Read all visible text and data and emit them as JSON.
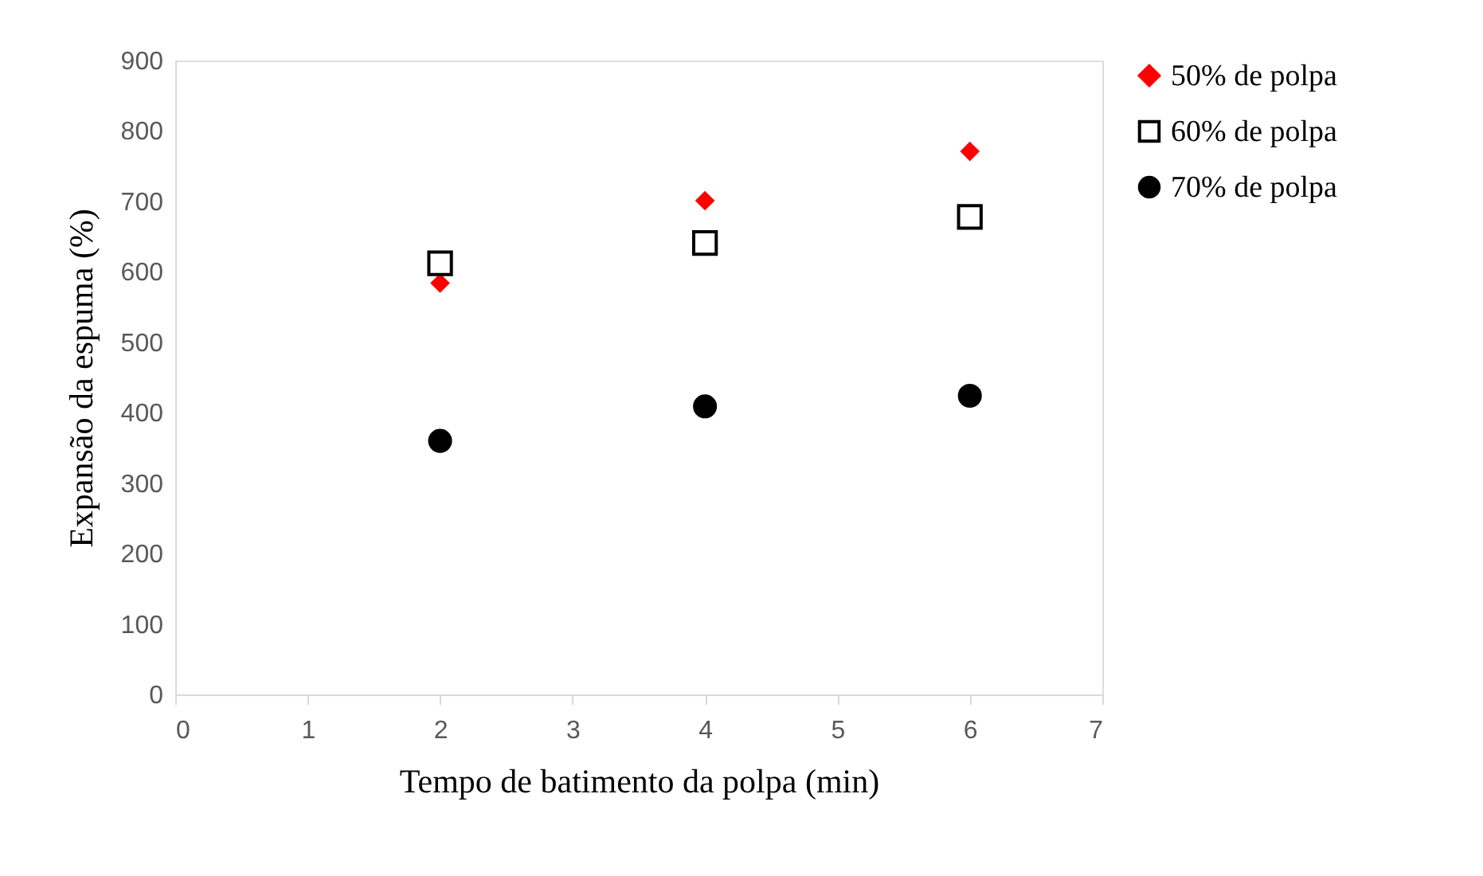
{
  "chart_data": {
    "type": "scatter",
    "xlabel": "Tempo de batimento da polpa (min)",
    "ylabel": "Expansão da espuma (%)",
    "xlim": [
      0,
      7
    ],
    "xticks": [
      0,
      1,
      2,
      3,
      4,
      5,
      6,
      7
    ],
    "ylim": [
      0,
      900
    ],
    "yticks": [
      0,
      100,
      200,
      300,
      400,
      500,
      600,
      700,
      800,
      900
    ],
    "grid": false,
    "legend": "right",
    "series": [
      {
        "name": "50% de polpa",
        "color": "#ff0000",
        "marker": "diamond",
        "x": [
          2,
          4,
          6
        ],
        "values": [
          584,
          701,
          771
        ]
      },
      {
        "name": "60% de polpa",
        "color": "#000000",
        "marker": "square",
        "x": [
          2,
          4,
          6
        ],
        "values": [
          612,
          641,
          678
        ]
      },
      {
        "name": "70% de polpa",
        "color": "#000000",
        "marker": "circle",
        "x": [
          2,
          4,
          6
        ],
        "values": [
          360,
          409,
          424
        ]
      }
    ]
  }
}
